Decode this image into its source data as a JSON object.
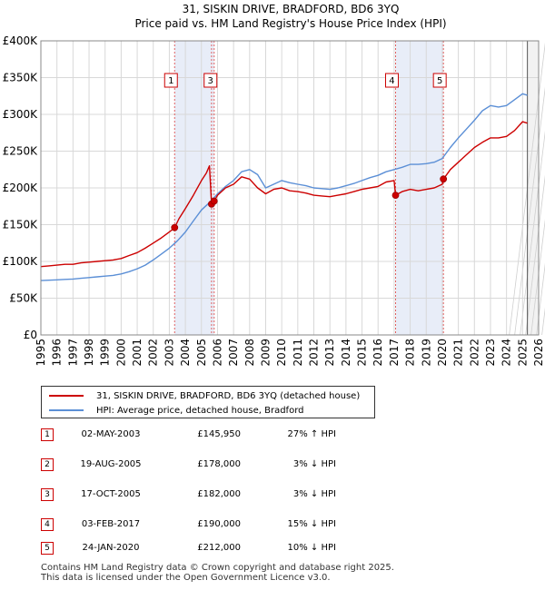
{
  "chart_data": {
    "type": "line",
    "title": "31, SISKIN DRIVE, BRADFORD, BD6 3YQ",
    "subtitle": "Price paid vs. HM Land Registry's House Price Index (HPI)",
    "xlabel": "",
    "ylabel": "",
    "xlim": [
      1995,
      2026
    ],
    "ylim": [
      0,
      400000
    ],
    "y_ticks": [
      {
        "value": 0,
        "label": "£0"
      },
      {
        "value": 50000,
        "label": "£50K"
      },
      {
        "value": 100000,
        "label": "£100K"
      },
      {
        "value": 150000,
        "label": "£150K"
      },
      {
        "value": 200000,
        "label": "£200K"
      },
      {
        "value": 250000,
        "label": "£250K"
      },
      {
        "value": 300000,
        "label": "£300K"
      },
      {
        "value": 350000,
        "label": "£350K"
      },
      {
        "value": 400000,
        "label": "£400K"
      }
    ],
    "x_ticks": [
      "1995",
      "1996",
      "1997",
      "1998",
      "1999",
      "2000",
      "2001",
      "2002",
      "2003",
      "2004",
      "2005",
      "2006",
      "2007",
      "2008",
      "2009",
      "2010",
      "2011",
      "2012",
      "2013",
      "2014",
      "2015",
      "2016",
      "2017",
      "2018",
      "2019",
      "2020",
      "2021",
      "2022",
      "2023",
      "2024",
      "2025",
      "2026"
    ],
    "grid": true,
    "shaded_periods": [
      [
        2003.33,
        2005.79
      ],
      [
        2017.09,
        2020.07
      ]
    ],
    "forecast_start": 2025.3,
    "series": [
      {
        "name": "31, SISKIN DRIVE, BRADFORD, BD6 3YQ (detached house)",
        "color": "#cc0000",
        "x": [
          1995.0,
          1995.5,
          1996.0,
          1996.5,
          1997.0,
          1997.5,
          1998.0,
          1998.5,
          1999.0,
          1999.5,
          2000.0,
          2000.5,
          2001.0,
          2001.5,
          2002.0,
          2002.5,
          2003.0,
          2003.33,
          2003.6,
          2004.0,
          2004.5,
          2005.0,
          2005.3,
          2005.5,
          2005.63,
          2005.79,
          2006.0,
          2006.5,
          2007.0,
          2007.5,
          2008.0,
          2008.5,
          2009.0,
          2009.5,
          2010.0,
          2010.5,
          2011.0,
          2011.5,
          2012.0,
          2012.5,
          2013.0,
          2013.5,
          2014.0,
          2014.5,
          2015.0,
          2015.5,
          2016.0,
          2016.5,
          2017.0,
          2017.09,
          2017.5,
          2018.0,
          2018.5,
          2019.0,
          2019.5,
          2020.0,
          2020.07,
          2020.5,
          2021.0,
          2021.5,
          2022.0,
          2022.5,
          2023.0,
          2023.5,
          2024.0,
          2024.5,
          2025.0,
          2025.3
        ],
        "y": [
          93000,
          94000,
          95000,
          96000,
          96000,
          98000,
          99000,
          100000,
          101000,
          102000,
          104000,
          108000,
          112000,
          118000,
          125000,
          132000,
          140000,
          145950,
          158000,
          172000,
          190000,
          210000,
          220000,
          230000,
          178000,
          182000,
          190000,
          200000,
          205000,
          215000,
          212000,
          200000,
          192000,
          198000,
          200000,
          196000,
          195000,
          193000,
          190000,
          189000,
          188000,
          190000,
          192000,
          195000,
          198000,
          200000,
          202000,
          208000,
          210000,
          190000,
          195000,
          198000,
          196000,
          198000,
          200000,
          205000,
          212000,
          225000,
          235000,
          245000,
          255000,
          262000,
          268000,
          268000,
          270000,
          278000,
          290000,
          288000
        ]
      },
      {
        "name": "HPI: Average price, detached house, Bradford",
        "color": "#5b8fd6",
        "x": [
          1995.0,
          1995.5,
          1996.0,
          1996.5,
          1997.0,
          1997.5,
          1998.0,
          1998.5,
          1999.0,
          1999.5,
          2000.0,
          2000.5,
          2001.0,
          2001.5,
          2002.0,
          2002.5,
          2003.0,
          2003.5,
          2004.0,
          2004.5,
          2005.0,
          2005.5,
          2006.0,
          2006.5,
          2007.0,
          2007.5,
          2008.0,
          2008.5,
          2009.0,
          2009.5,
          2010.0,
          2010.5,
          2011.0,
          2011.5,
          2012.0,
          2012.5,
          2013.0,
          2013.5,
          2014.0,
          2014.5,
          2015.0,
          2015.5,
          2016.0,
          2016.5,
          2017.0,
          2017.5,
          2018.0,
          2018.5,
          2019.0,
          2019.5,
          2020.0,
          2020.5,
          2021.0,
          2021.5,
          2022.0,
          2022.5,
          2023.0,
          2023.5,
          2024.0,
          2024.5,
          2025.0,
          2025.3
        ],
        "y": [
          74000,
          74500,
          75000,
          75500,
          76000,
          77000,
          78000,
          79000,
          80000,
          81000,
          83000,
          86000,
          90000,
          95000,
          102000,
          110000,
          118000,
          128000,
          140000,
          155000,
          170000,
          180000,
          192000,
          202000,
          210000,
          222000,
          225000,
          218000,
          200000,
          205000,
          210000,
          207000,
          205000,
          203000,
          200000,
          199000,
          198000,
          200000,
          203000,
          206000,
          210000,
          214000,
          217000,
          222000,
          225000,
          228000,
          232000,
          232000,
          233000,
          235000,
          240000,
          255000,
          268000,
          280000,
          292000,
          305000,
          312000,
          310000,
          312000,
          320000,
          328000,
          326000
        ]
      }
    ],
    "sale_markers": [
      {
        "label": "1",
        "x": 2003.33,
        "y": 145950
      },
      {
        "label": "2",
        "x": 2005.63,
        "y": 178000
      },
      {
        "label": "3",
        "x": 2005.79,
        "y": 182000
      },
      {
        "label": "4",
        "x": 2017.09,
        "y": 190000
      },
      {
        "label": "5",
        "x": 2020.07,
        "y": 212000
      }
    ],
    "marker_boxes": [
      "1",
      "3",
      "4",
      "5"
    ]
  },
  "legend": {
    "items": [
      {
        "label": "31, SISKIN DRIVE, BRADFORD, BD6 3YQ (detached house)",
        "color": "#cc0000"
      },
      {
        "label": "HPI: Average price, detached house, Bradford",
        "color": "#5b8fd6"
      }
    ]
  },
  "sales": [
    {
      "num": "1",
      "date": "02-MAY-2003",
      "price": "£145,950",
      "hpi": "27% ↑ HPI"
    },
    {
      "num": "2",
      "date": "19-AUG-2005",
      "price": "£178,000",
      "hpi": "3% ↓ HPI"
    },
    {
      "num": "3",
      "date": "17-OCT-2005",
      "price": "£182,000",
      "hpi": "3% ↓ HPI"
    },
    {
      "num": "4",
      "date": "03-FEB-2017",
      "price": "£190,000",
      "hpi": "15% ↓ HPI"
    },
    {
      "num": "5",
      "date": "24-JAN-2020",
      "price": "£212,000",
      "hpi": "10% ↓ HPI"
    }
  ],
  "footer": {
    "line1": "Contains HM Land Registry data © Crown copyright and database right 2025.",
    "line2": "This data is licensed under the Open Government Licence v3.0."
  }
}
